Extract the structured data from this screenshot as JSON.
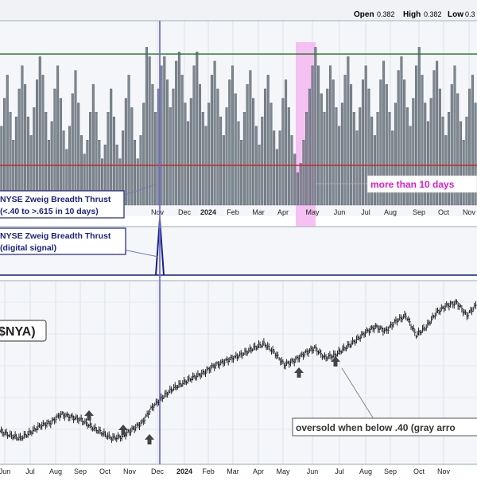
{
  "header": {
    "open_label": "Open",
    "open_value": "0.382",
    "high_label": "High",
    "high_value": "0.382",
    "low_label": "Low",
    "low_value": "0.3"
  },
  "chart_data": [
    {
      "type": "bar",
      "panel": "breadth",
      "series": [
        {
          "name": "NYSE Zweig Breadth Thrust",
          "values": [
            0.47,
            0.53,
            0.58,
            0.5,
            0.44,
            0.49,
            0.55,
            0.6,
            0.56,
            0.49,
            0.45,
            0.51,
            0.57,
            0.62,
            0.58,
            0.5,
            0.44,
            0.48,
            0.55,
            0.6,
            0.53,
            0.46,
            0.42,
            0.47,
            0.54,
            0.59,
            0.52,
            0.45,
            0.41,
            0.44,
            0.5,
            0.56,
            0.5,
            0.44,
            0.4,
            0.43,
            0.5,
            0.55,
            0.49,
            0.43,
            0.4,
            0.46,
            0.53,
            0.58,
            0.51,
            0.44,
            0.4,
            0.45,
            0.52,
            0.64,
            0.62,
            0.56,
            0.5,
            0.55,
            0.6,
            0.62,
            0.57,
            0.51,
            0.55,
            0.61,
            0.63,
            0.58,
            0.52,
            0.48,
            0.53,
            0.6,
            0.63,
            0.56,
            0.5,
            0.47,
            0.52,
            0.58,
            0.61,
            0.55,
            0.49,
            0.45,
            0.51,
            0.57,
            0.6,
            0.54,
            0.48,
            0.44,
            0.5,
            0.56,
            0.59,
            0.53,
            0.47,
            0.43,
            0.49,
            0.55,
            0.58,
            0.52,
            0.46,
            0.42,
            0.46,
            0.53,
            0.57,
            0.51,
            0.45,
            0.41,
            0.37,
            0.39,
            0.44,
            0.5,
            0.55,
            0.6,
            0.64,
            0.6,
            0.54,
            0.5,
            0.55,
            0.6,
            0.57,
            0.51,
            0.47,
            0.52,
            0.58,
            0.62,
            0.56,
            0.5,
            0.46,
            0.51,
            0.57,
            0.6,
            0.55,
            0.49,
            0.45,
            0.5,
            0.57,
            0.61,
            0.56,
            0.5,
            0.46,
            0.52,
            0.59,
            0.62,
            0.57,
            0.51,
            0.47,
            0.53,
            0.6,
            0.64,
            0.58,
            0.52,
            0.48,
            0.53,
            0.59,
            0.61,
            0.55,
            0.49,
            0.45,
            0.5,
            0.56,
            0.6,
            0.54,
            0.48,
            0.44,
            0.49,
            0.55,
            0.58,
            0.52
          ]
        }
      ],
      "reference_lines": [
        {
          "value": 0.615,
          "color": "#2e7d32"
        },
        {
          "value": 0.4,
          "color": "#c62828"
        }
      ],
      "annotations": [
        "NYSE Zweig Breadth Thrust",
        "(<.40 to >.615 in 10 days)",
        "more than 10 days"
      ]
    },
    {
      "type": "line",
      "panel": "signal",
      "series": [
        {
          "name": "NYSE Zweig Breadth Thrust",
          "signal_month": "Nov 2023",
          "values": [
            0,
            1,
            0
          ]
        }
      ],
      "annotations": [
        "NYSE Zweig Breadth Thrust",
        "(digital signal)"
      ]
    },
    {
      "type": "line",
      "panel": "price",
      "series": [
        {
          "name": "$NYA",
          "values": [
            15200,
            15050,
            14950,
            15150,
            15400,
            15500,
            15800,
            15700,
            15600,
            15350,
            15150,
            14950,
            15000,
            15250,
            15500,
            16050,
            16400,
            16700,
            16900,
            17100,
            17250,
            17500,
            17650,
            17800,
            17950,
            18150,
            18300,
            18000,
            17550,
            17700,
            17950,
            18150,
            17800,
            17900,
            18150,
            18400,
            18700,
            18900,
            18750,
            19100,
            19300,
            18600,
            18900,
            19400,
            19650,
            19750,
            19300,
            19700
          ]
        }
      ],
      "x_ticks": [
        "Jun",
        "Jul",
        "Aug",
        "Sep",
        "Oct",
        "Nov",
        "Dec",
        "2024",
        "Feb",
        "Mar",
        "Apr",
        "May",
        "Jun",
        "Jul",
        "Aug",
        "Sep",
        "Oct",
        "Nov"
      ],
      "annotations": [
        "$NYA)",
        "oversold when below .40 (gray arro"
      ]
    }
  ],
  "axis": {
    "months_top": [
      "Nov",
      "Dec",
      "2024",
      "Feb",
      "Mar",
      "Apr",
      "May",
      "Jun",
      "Jul",
      "Aug",
      "Sep",
      "Oct",
      "Nov"
    ],
    "months_bottom": [
      "Jun",
      "Jul",
      "Aug",
      "Sep",
      "Oct",
      "Nov",
      "Dec",
      "2024",
      "Feb",
      "Mar",
      "Apr",
      "May",
      "Jun",
      "Jul",
      "Aug",
      "Sep",
      "Oct",
      "Nov"
    ]
  },
  "labels": {
    "zbt_title": "NYSE Zweig Breadth Thrust",
    "zbt_sub": "(<.40 to >.615 in 10 days)",
    "sig_title": "NYSE Zweig Breadth Thrust",
    "sig_sub": "(digital signal)",
    "more_days": "more than 10 days",
    "nya": "$NYA)",
    "oversold": "oversold when below .40 (gray arro"
  },
  "colors": {
    "bar": "#7d8790",
    "green_line": "#2e7d32",
    "red_line": "#c62828",
    "signal_line": "#1a237e",
    "highlight": "#f4b6f0",
    "cursor": "#6a6ad8",
    "magenta_text": "#d81bd0",
    "panel_bg": "#f4f6fa"
  }
}
